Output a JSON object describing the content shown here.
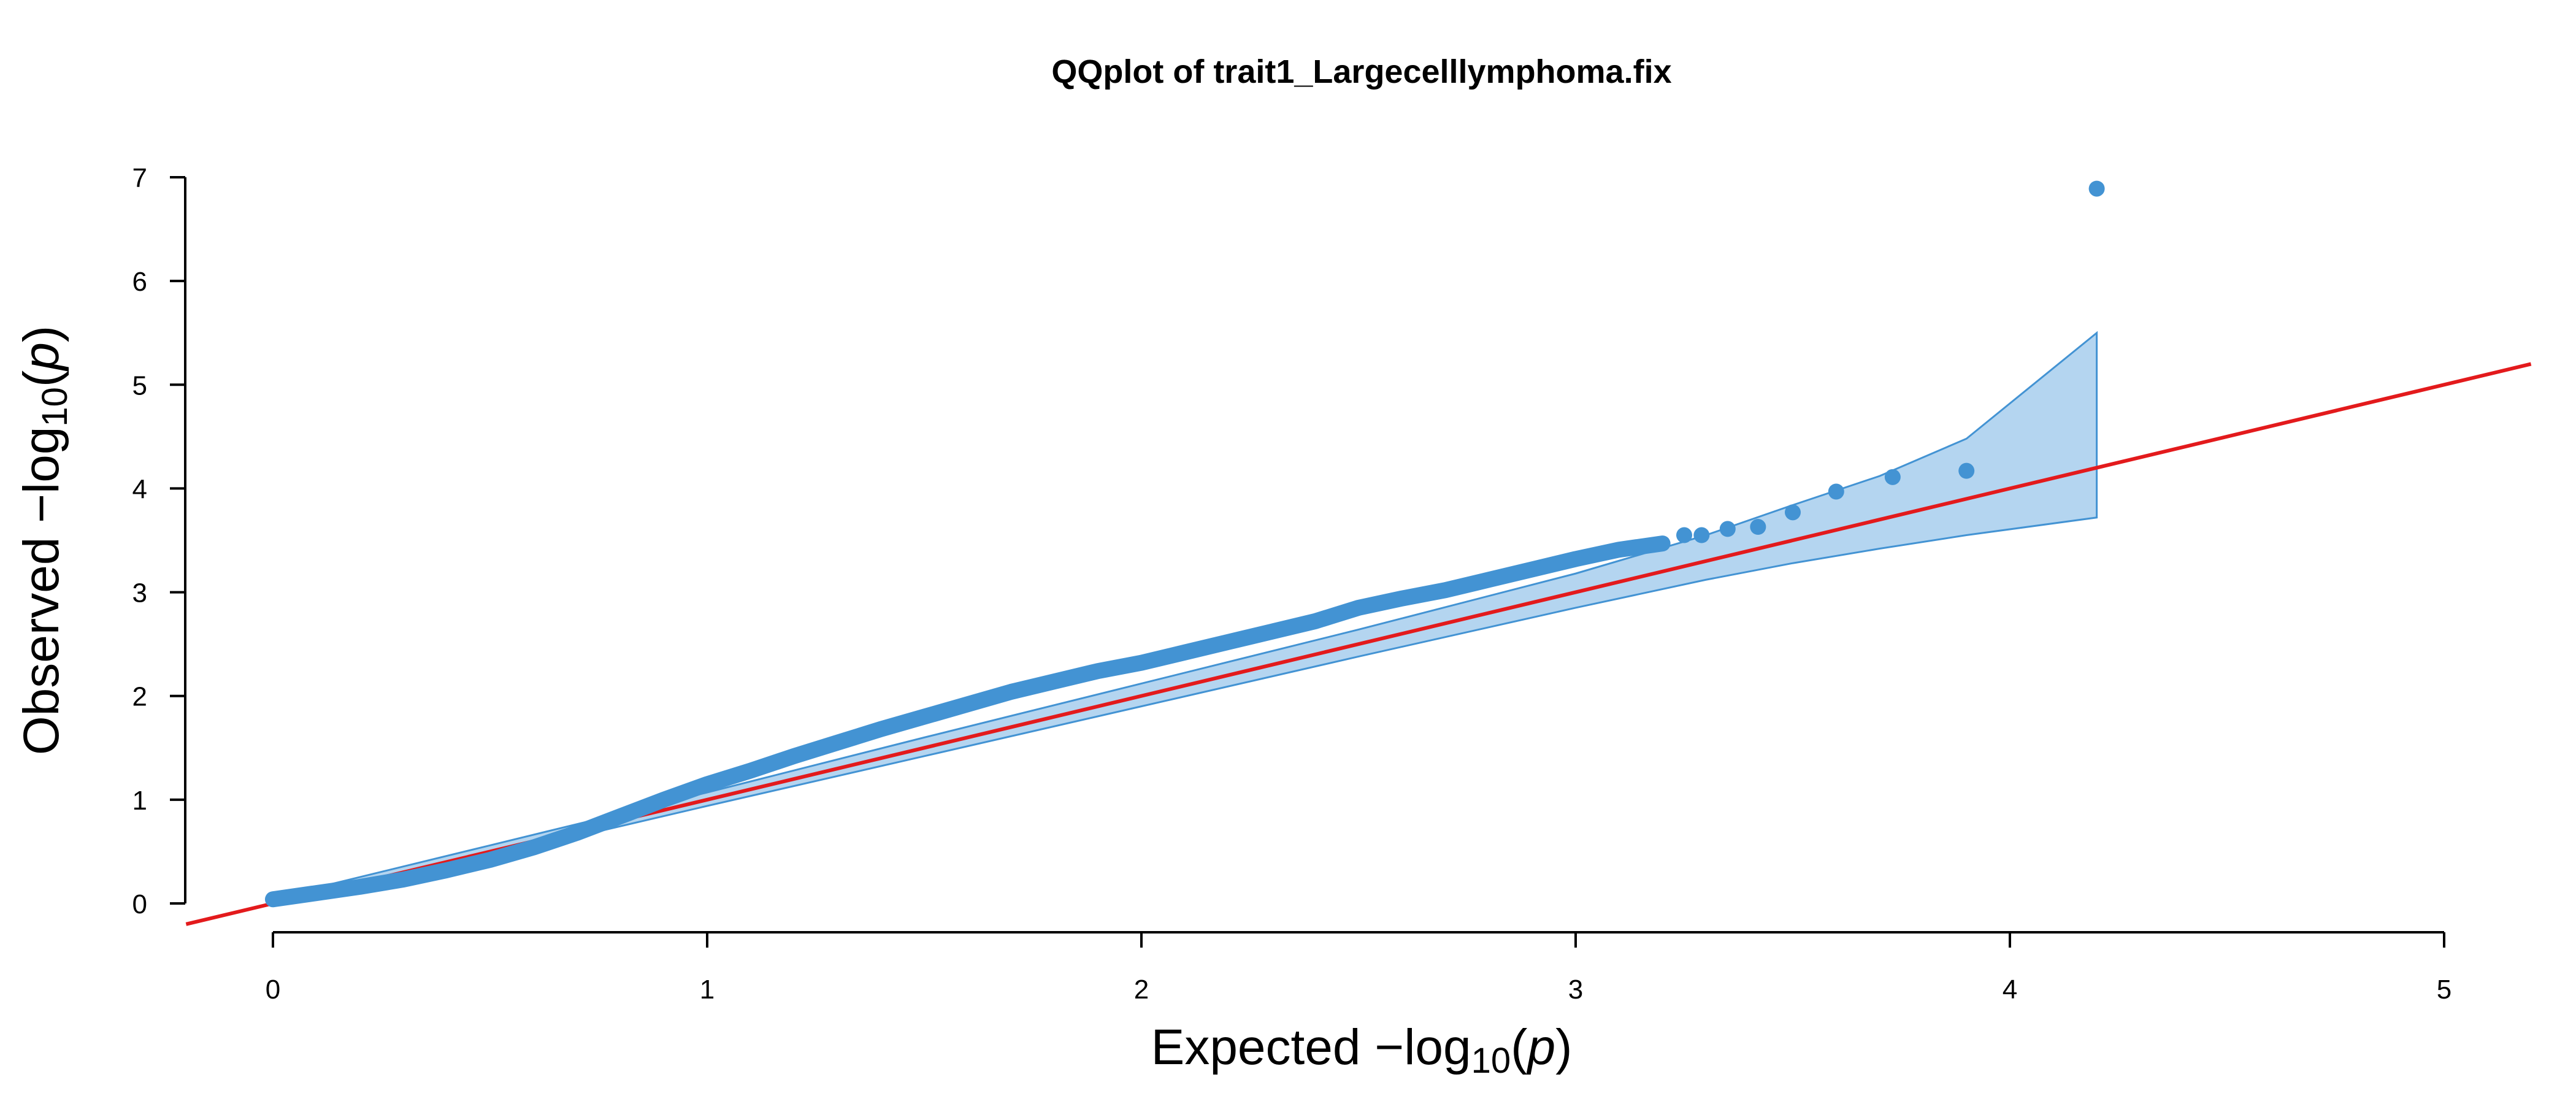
{
  "chart_data": {
    "type": "scatter",
    "title": "QQplot of trait1_Largecelllymphoma.fix",
    "xlabel": {
      "prefix": "Expected  −log",
      "sub": "10",
      "paren_open": "(",
      "var": "p",
      "paren_close": ")"
    },
    "ylabel": {
      "prefix": "Observed  −log",
      "sub": "10",
      "paren_open": "(",
      "var": "p",
      "paren_close": ")"
    },
    "xlim": [
      -0.2,
      5.2
    ],
    "ylim": [
      -0.2,
      7.1
    ],
    "x_axis_range": [
      0,
      5
    ],
    "y_axis_range": [
      0,
      7
    ],
    "xticks": [
      "0",
      "1",
      "2",
      "3",
      "4",
      "5"
    ],
    "yticks": [
      "0",
      "1",
      "2",
      "3",
      "4",
      "5",
      "6",
      "7"
    ],
    "grid": false,
    "colors": {
      "points": "#4393d3",
      "band_fill": "#b4d5f0",
      "band_stroke": "#4393d3",
      "reference_line": "#e31a1c"
    },
    "reference_line": {
      "slope": 1,
      "intercept": 0
    },
    "confidence_band": {
      "x": [
        0,
        0.5,
        1,
        1.5,
        2,
        2.5,
        3,
        3.3,
        3.5,
        3.7,
        3.9,
        4.2
      ],
      "upper": [
        0.05,
        0.56,
        1.07,
        1.6,
        2.12,
        2.64,
        3.18,
        3.55,
        3.84,
        4.12,
        4.48,
        5.5
      ],
      "lower": [
        0.0,
        0.45,
        0.94,
        1.42,
        1.9,
        2.38,
        2.85,
        3.12,
        3.28,
        3.42,
        3.55,
        3.72
      ]
    },
    "curve": {
      "x": [
        0,
        0.1,
        0.2,
        0.3,
        0.4,
        0.5,
        0.6,
        0.7,
        0.8,
        0.9,
        1.0,
        1.1,
        1.2,
        1.3,
        1.4,
        1.5,
        1.6,
        1.7,
        1.8,
        1.9,
        2.0,
        2.1,
        2.2,
        2.3,
        2.4,
        2.5,
        2.6,
        2.7,
        2.8,
        2.9,
        3.0,
        3.1,
        3.2
      ],
      "y": [
        0.04,
        0.1,
        0.16,
        0.23,
        0.32,
        0.42,
        0.54,
        0.68,
        0.84,
        1.0,
        1.15,
        1.28,
        1.42,
        1.55,
        1.68,
        1.8,
        1.92,
        2.04,
        2.14,
        2.24,
        2.32,
        2.42,
        2.52,
        2.62,
        2.72,
        2.85,
        2.94,
        3.02,
        3.12,
        3.22,
        3.32,
        3.41,
        3.47
      ]
    },
    "points": [
      {
        "x": 3.25,
        "y": 3.55
      },
      {
        "x": 3.29,
        "y": 3.55
      },
      {
        "x": 3.35,
        "y": 3.61
      },
      {
        "x": 3.42,
        "y": 3.63
      },
      {
        "x": 3.5,
        "y": 3.77
      },
      {
        "x": 3.6,
        "y": 3.97
      },
      {
        "x": 3.73,
        "y": 4.11
      },
      {
        "x": 3.9,
        "y": 4.17
      },
      {
        "x": 4.2,
        "y": 6.89
      }
    ]
  }
}
